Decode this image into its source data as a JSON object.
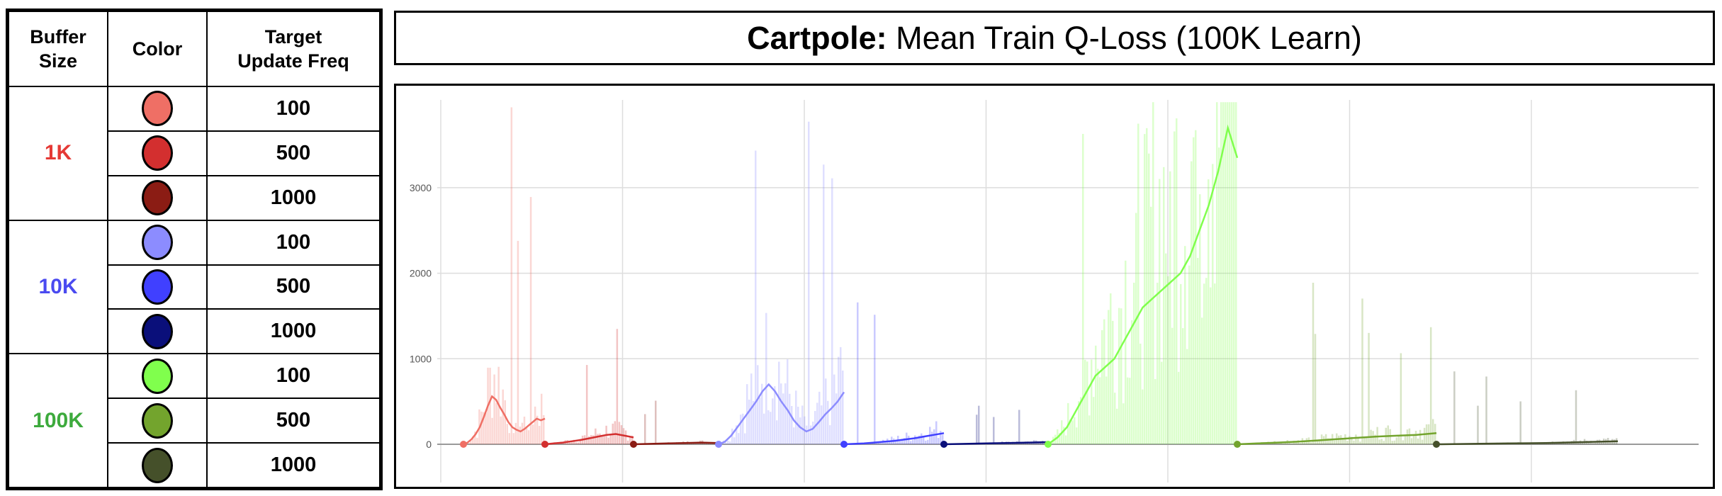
{
  "legend": {
    "headers": {
      "buffer": "Buffer\nSize",
      "color": "Color",
      "freq": "Target\nUpdate Freq"
    },
    "groups": [
      {
        "label": "1K",
        "color": "#e53935",
        "rows": [
          {
            "freq": "100",
            "swatch": "#ef6f65"
          },
          {
            "freq": "500",
            "swatch": "#d32f2f"
          },
          {
            "freq": "1000",
            "swatch": "#8b1c14"
          }
        ]
      },
      {
        "label": "10K",
        "color": "#4a4af0",
        "rows": [
          {
            "freq": "100",
            "swatch": "#8c8cff"
          },
          {
            "freq": "500",
            "swatch": "#4040ff"
          },
          {
            "freq": "1000",
            "swatch": "#0a0f7a"
          }
        ]
      },
      {
        "label": "100K",
        "color": "#3daa3d",
        "rows": [
          {
            "freq": "100",
            "swatch": "#80ff4d"
          },
          {
            "freq": "500",
            "swatch": "#73a42d"
          },
          {
            "freq": "1000",
            "swatch": "#45502a"
          }
        ]
      }
    ]
  },
  "title": {
    "bold": "Cartpole:",
    "rest": " Mean Train Q-Loss (100K Learn)"
  },
  "chart_data": {
    "type": "line",
    "title": "Cartpole: Mean Train Q-Loss (100K Learn)",
    "xlabel": "",
    "ylabel": "",
    "ylim": [
      -500,
      4000
    ],
    "y_ticks": [
      0,
      1000,
      2000,
      3000
    ],
    "y_tick_labels": [
      "0",
      "1000",
      "2000",
      "3000"
    ],
    "grid": true,
    "series": [
      {
        "name": "1K / 100",
        "color": "#ef6f65",
        "x": [
          0,
          0.05,
          0.1,
          0.15,
          0.2,
          0.25,
          0.3,
          0.35,
          0.4,
          0.45,
          0.5,
          0.55,
          0.6,
          0.65,
          0.7,
          0.75,
          0.8,
          0.85,
          0.9,
          0.95,
          1
        ],
        "y": [
          0,
          20,
          60,
          120,
          200,
          320,
          450,
          560,
          520,
          430,
          350,
          260,
          200,
          170,
          150,
          180,
          220,
          260,
          300,
          280,
          300
        ]
      },
      {
        "name": "1K / 500",
        "color": "#d32f2f",
        "x": [
          0,
          0.1,
          0.2,
          0.3,
          0.4,
          0.5,
          0.6,
          0.7,
          0.8,
          0.9,
          1
        ],
        "y": [
          0,
          10,
          20,
          35,
          50,
          70,
          90,
          110,
          120,
          100,
          80
        ]
      },
      {
        "name": "1K / 1000",
        "color": "#8b1c14",
        "x": [
          0,
          0.2,
          0.4,
          0.6,
          0.8,
          1
        ],
        "y": [
          0,
          5,
          10,
          15,
          20,
          15
        ]
      },
      {
        "name": "10K / 100",
        "color": "#8c8cff",
        "x": [
          0,
          0.05,
          0.1,
          0.15,
          0.2,
          0.25,
          0.3,
          0.35,
          0.4,
          0.45,
          0.5,
          0.55,
          0.6,
          0.65,
          0.7,
          0.75,
          0.8,
          0.85,
          0.9,
          0.95,
          1
        ],
        "y": [
          0,
          30,
          100,
          200,
          300,
          400,
          500,
          620,
          700,
          620,
          500,
          400,
          280,
          200,
          150,
          180,
          260,
          350,
          420,
          500,
          610
        ]
      },
      {
        "name": "10K / 500",
        "color": "#4040ff",
        "x": [
          0,
          0.1,
          0.2,
          0.3,
          0.4,
          0.5,
          0.6,
          0.7,
          0.8,
          0.9,
          1
        ],
        "y": [
          0,
          5,
          10,
          20,
          30,
          40,
          55,
          70,
          90,
          110,
          130
        ]
      },
      {
        "name": "10K / 1000",
        "color": "#0a0f7a",
        "x": [
          0,
          0.2,
          0.4,
          0.6,
          0.8,
          1
        ],
        "y": [
          0,
          5,
          10,
          15,
          20,
          25
        ]
      },
      {
        "name": "100K / 100",
        "color": "#80ff4d",
        "x": [
          0,
          0.05,
          0.1,
          0.15,
          0.2,
          0.25,
          0.3,
          0.35,
          0.4,
          0.45,
          0.5,
          0.55,
          0.6,
          0.65,
          0.7,
          0.75,
          0.8,
          0.85,
          0.9,
          0.95,
          1
        ],
        "y": [
          0,
          80,
          200,
          400,
          600,
          800,
          900,
          1000,
          1200,
          1400,
          1600,
          1700,
          1800,
          1900,
          2000,
          2200,
          2500,
          2800,
          3200,
          3700,
          3350
        ]
      },
      {
        "name": "100K / 500",
        "color": "#73a42d",
        "x": [
          0,
          0.1,
          0.2,
          0.3,
          0.4,
          0.5,
          0.6,
          0.7,
          0.8,
          0.9,
          1
        ],
        "y": [
          0,
          10,
          20,
          30,
          45,
          60,
          75,
          90,
          100,
          110,
          130
        ]
      },
      {
        "name": "100K / 1000",
        "color": "#45502a",
        "x": [
          0,
          0.2,
          0.4,
          0.6,
          0.8,
          1
        ],
        "y": [
          0,
          5,
          10,
          15,
          25,
          35
        ]
      }
    ]
  }
}
